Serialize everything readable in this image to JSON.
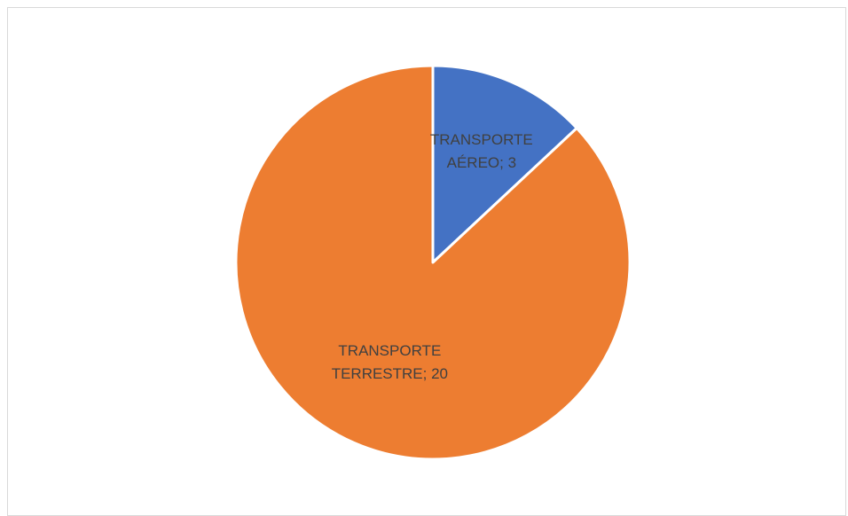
{
  "chart_data": {
    "type": "pie",
    "title": "",
    "slices": [
      {
        "category": "TRANSPORTE AÉREO",
        "value": 3,
        "color": "#4472c4",
        "label_lines": [
          "TRANSPORTE",
          "AÉREO; 3"
        ]
      },
      {
        "category": "TRANSPORTE TERRESTRE",
        "value": 20,
        "color": "#ed7d31",
        "label_lines": [
          "TRANSPORTE",
          "TERRESTRE; 20"
        ]
      }
    ],
    "start": "12 o'clock",
    "direction": "clockwise",
    "legend": "none",
    "data_labels": "category; value"
  }
}
